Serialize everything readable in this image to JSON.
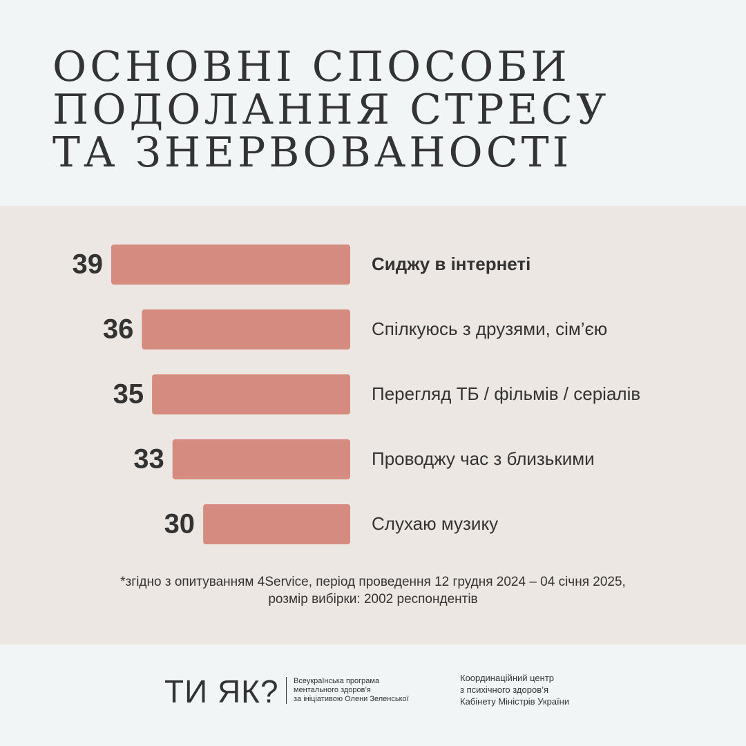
{
  "chart_data": {
    "type": "hbar",
    "title": "ОСНОВНІ СПОСОБИ\nПОДОЛАННЯ СТРЕСУ\nТА ЗНЕРВОВАНОСТІ",
    "categories": [
      "Сиджу в інтернеті",
      "Спілкуюсь з друзями, сім’єю",
      "Перегляд ТБ / фільмів / серіалів",
      "Проводжу час з близькими",
      "Слухаю музику"
    ],
    "values": [
      39,
      36,
      35,
      33,
      30
    ],
    "color": "#d58b7f",
    "xlim": [
      15.6,
      39
    ],
    "highlight_index": 0,
    "note": "*згідно з опитуванням 4Service, період проведення 12 грудня 2024 – 04 січня 2025,\nрозмір вибірки: 2002 респондентів"
  },
  "footer": {
    "logo": "ТИ ЯК?",
    "program": "Всеукраїнська програма\nментального здоров’я\nза ініціативою Олени Зеленської",
    "center": "Координаційний центр\nз психічного здоров’я\nКабінету Міністрів України"
  }
}
